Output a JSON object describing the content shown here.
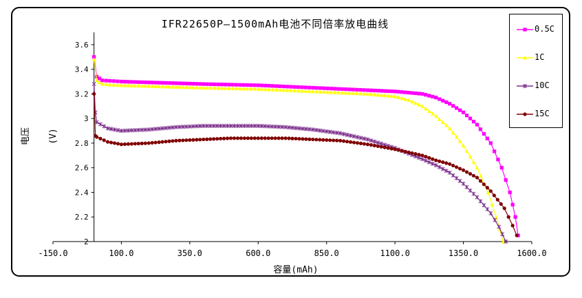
{
  "chart_data": {
    "type": "line",
    "title": "IFR22650P—1500mAh电池不同倍率放电曲线",
    "xlabel": "容量(mAh)",
    "ylabel": "电压(V)",
    "xlim": [
      -150,
      1600
    ],
    "ylim": [
      2,
      3.7
    ],
    "x_ticks": [
      "-150.0",
      "100.0",
      "350.0",
      "600.0",
      "850.0",
      "1100.0",
      "1350.0",
      "1600.0"
    ],
    "y_ticks": [
      "2",
      "2.2",
      "2.4",
      "2.6",
      "2.8",
      "3",
      "3.2",
      "3.4",
      "3.6"
    ],
    "legend_position": "right",
    "grid": false,
    "series": [
      {
        "name": "0.5C",
        "color": "#ff00ff",
        "marker": "square",
        "points": [
          [
            0,
            3.5
          ],
          [
            10,
            3.34
          ],
          [
            30,
            3.31
          ],
          [
            100,
            3.3
          ],
          [
            250,
            3.29
          ],
          [
            400,
            3.28
          ],
          [
            600,
            3.27
          ],
          [
            800,
            3.25
          ],
          [
            1000,
            3.23
          ],
          [
            1100,
            3.22
          ],
          [
            1200,
            3.2
          ],
          [
            1250,
            3.17
          ],
          [
            1300,
            3.12
          ],
          [
            1350,
            3.05
          ],
          [
            1400,
            2.95
          ],
          [
            1450,
            2.8
          ],
          [
            1490,
            2.6
          ],
          [
            1520,
            2.4
          ],
          [
            1540,
            2.2
          ],
          [
            1550,
            2.05
          ]
        ]
      },
      {
        "name": "1C",
        "color": "#ffff00",
        "marker": "triangle",
        "points": [
          [
            0,
            3.48
          ],
          [
            10,
            3.31
          ],
          [
            30,
            3.28
          ],
          [
            100,
            3.27
          ],
          [
            250,
            3.26
          ],
          [
            400,
            3.25
          ],
          [
            600,
            3.24
          ],
          [
            800,
            3.22
          ],
          [
            1000,
            3.2
          ],
          [
            1100,
            3.18
          ],
          [
            1150,
            3.15
          ],
          [
            1200,
            3.1
          ],
          [
            1250,
            3.02
          ],
          [
            1300,
            2.92
          ],
          [
            1350,
            2.78
          ],
          [
            1400,
            2.6
          ],
          [
            1440,
            2.4
          ],
          [
            1470,
            2.2
          ],
          [
            1495,
            2.0
          ]
        ]
      },
      {
        "name": "10C",
        "color": "#7b2d8b",
        "marker": "star",
        "points": [
          [
            0,
            3.28
          ],
          [
            5,
            3.05
          ],
          [
            10,
            2.97
          ],
          [
            50,
            2.92
          ],
          [
            100,
            2.9
          ],
          [
            200,
            2.91
          ],
          [
            300,
            2.93
          ],
          [
            400,
            2.94
          ],
          [
            500,
            2.94
          ],
          [
            600,
            2.94
          ],
          [
            700,
            2.93
          ],
          [
            800,
            2.91
          ],
          [
            900,
            2.88
          ],
          [
            1000,
            2.83
          ],
          [
            1100,
            2.76
          ],
          [
            1200,
            2.67
          ],
          [
            1250,
            2.62
          ],
          [
            1300,
            2.56
          ],
          [
            1350,
            2.47
          ],
          [
            1400,
            2.36
          ],
          [
            1450,
            2.23
          ],
          [
            1480,
            2.12
          ],
          [
            1505,
            2.0
          ]
        ]
      },
      {
        "name": "15C",
        "color": "#800000",
        "marker": "circle",
        "points": [
          [
            0,
            3.2
          ],
          [
            5,
            2.86
          ],
          [
            10,
            2.85
          ],
          [
            50,
            2.81
          ],
          [
            100,
            2.79
          ],
          [
            200,
            2.8
          ],
          [
            300,
            2.82
          ],
          [
            400,
            2.83
          ],
          [
            500,
            2.84
          ],
          [
            600,
            2.84
          ],
          [
            700,
            2.84
          ],
          [
            800,
            2.83
          ],
          [
            900,
            2.82
          ],
          [
            1000,
            2.79
          ],
          [
            1100,
            2.75
          ],
          [
            1200,
            2.7
          ],
          [
            1250,
            2.66
          ],
          [
            1300,
            2.63
          ],
          [
            1350,
            2.58
          ],
          [
            1400,
            2.52
          ],
          [
            1450,
            2.41
          ],
          [
            1500,
            2.27
          ],
          [
            1530,
            2.13
          ],
          [
            1545,
            2.05
          ]
        ]
      }
    ]
  }
}
